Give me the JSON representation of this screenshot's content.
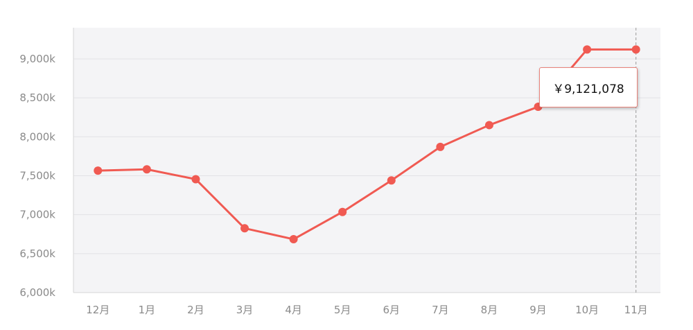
{
  "chart_data": {
    "type": "line",
    "categories": [
      "12月",
      "1月",
      "2月",
      "3月",
      "4月",
      "5月",
      "6月",
      "7月",
      "8月",
      "9月",
      "10月",
      "11月"
    ],
    "series": [
      {
        "values": [
          7565000,
          7582000,
          7455000,
          6825000,
          6685000,
          7035000,
          7440000,
          7870000,
          8150000,
          8385000,
          9121078,
          9121078
        ]
      }
    ],
    "ylim": [
      6000000,
      9400000
    ],
    "y_ticks": [
      "6,000k",
      "6,500k",
      "7,000k",
      "7,500k",
      "8,000k",
      "8,500k",
      "9,000k"
    ],
    "y_tick_values": [
      6000000,
      6500000,
      7000000,
      7500000,
      8000000,
      8500000,
      9000000
    ],
    "grid": true,
    "colors": {
      "line": "#f05a52",
      "plot_bg": "#f4f4f6",
      "grid": "#e2e2e6",
      "cursor": "#999999"
    },
    "tooltip": {
      "category": "11月",
      "text": "￥9,121,078"
    }
  }
}
